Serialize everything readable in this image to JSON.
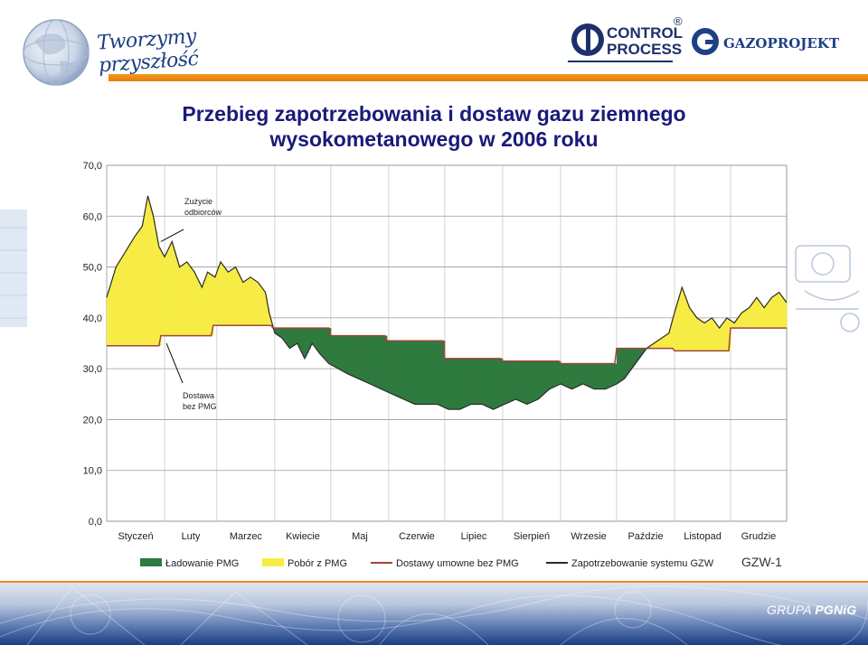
{
  "header": {
    "slogan": "Tworzymy przyszłość",
    "control_process": {
      "line1": "CONTROL",
      "line2": "PROCESS",
      "mark": "®"
    },
    "gazoprojekt": "GAZOPROJEKT"
  },
  "title": {
    "line1": "Przebieg zapotrzebowania i dostaw gazu ziemnego",
    "line2": "wysokometanowego w 2006 roku"
  },
  "footer": {
    "grupa": "GRUPA",
    "pgnig": "PGNiG",
    "gzw_code": "GZW-1"
  },
  "colors": {
    "loading": "#2f7a3e",
    "draw": "#f7ec45",
    "contract": "#a0453a",
    "demand": "#2a2a2a",
    "accent_orange": "#f08c17",
    "title": "#1a1a7a"
  },
  "chart_data": {
    "type": "area",
    "ylim": [
      0,
      70
    ],
    "yticks": [
      "0,0",
      "10,0",
      "20,0",
      "30,0",
      "40,0",
      "50,0",
      "60,0",
      "70,0"
    ],
    "ytick_values": [
      0,
      10,
      20,
      30,
      40,
      50,
      60,
      70
    ],
    "xlim": [
      1,
      365
    ],
    "months": [
      "Styczeń",
      "Luty",
      "Marzec",
      "Kwiecie",
      "Maj",
      "Czerwie",
      "Lipiec",
      "Sierpień",
      "Wrzesie",
      "Paździe",
      "Listopad",
      "Grudzie"
    ],
    "month_tick_days": [
      1,
      32,
      60,
      91,
      121,
      152,
      182,
      213,
      244,
      274,
      305,
      335
    ],
    "grid": true,
    "annotations": [
      {
        "text_lines": [
          "Zużycie",
          "odbiorców"
        ],
        "arrow_to": {
          "day": 30,
          "value": 55
        }
      },
      {
        "text_lines": [
          "Dostawa",
          "bez PMG"
        ],
        "arrow_to": {
          "day": 33,
          "value": 35
        }
      }
    ],
    "legend": {
      "placement": "bottom",
      "items": [
        {
          "label": "Ładowanie PMG",
          "kind": "fill",
          "color": "#2f7a3e"
        },
        {
          "label": "Pobór z PMG",
          "kind": "fill",
          "color": "#f7ec45"
        },
        {
          "label": "Dostawy umowne bez PMG",
          "kind": "line",
          "color": "#a0453a"
        },
        {
          "label": "Zapotrzebowanie systemu GZW",
          "kind": "line",
          "color": "#2a2a2a"
        }
      ]
    },
    "series": [
      {
        "name": "Zapotrzebowanie systemu GZW",
        "days": [
          1,
          6,
          11,
          16,
          20,
          23,
          26,
          29,
          32,
          36,
          40,
          44,
          48,
          52,
          55,
          59,
          62,
          66,
          70,
          74,
          78,
          82,
          86,
          88,
          91,
          95,
          99,
          103,
          107,
          111,
          115,
          120,
          125,
          130,
          136,
          142,
          148,
          154,
          160,
          166,
          172,
          178,
          184,
          190,
          196,
          202,
          208,
          214,
          220,
          226,
          232,
          238,
          244,
          250,
          256,
          262,
          268,
          274,
          278,
          282,
          286,
          290,
          294,
          298,
          302,
          305,
          309,
          313,
          317,
          321,
          325,
          329,
          333,
          337,
          341,
          345,
          349,
          353,
          357,
          361,
          365
        ],
        "values": [
          44,
          50,
          53,
          56,
          58,
          64,
          60,
          54,
          52,
          55,
          50,
          51,
          49,
          46,
          49,
          48,
          51,
          49,
          50,
          47,
          48,
          47,
          45,
          41,
          37,
          36,
          34,
          35,
          32,
          35,
          33,
          31,
          30,
          29,
          28,
          27,
          26,
          25,
          24,
          23,
          23,
          23,
          22,
          22,
          23,
          23,
          22,
          23,
          24,
          23,
          24,
          26,
          27,
          26,
          27,
          26,
          26,
          27,
          28,
          30,
          32,
          34,
          35,
          36,
          37,
          41,
          46,
          42,
          40,
          39,
          40,
          38,
          40,
          39,
          41,
          42,
          44,
          42,
          44,
          45,
          43
        ]
      },
      {
        "name": "Dostawy umowne bez PMG",
        "days": [
          1,
          29,
          30,
          57,
          58,
          89,
          90,
          120,
          121,
          150,
          151,
          181,
          182,
          212,
          213,
          243,
          244,
          273,
          274,
          304,
          305,
          334,
          335,
          365
        ],
        "values": [
          34.5,
          34.5,
          36.5,
          36.5,
          38.5,
          38.5,
          38,
          38,
          36.5,
          36.5,
          35.5,
          35.5,
          32,
          32,
          31.5,
          31.5,
          31,
          31,
          34,
          34,
          33.5,
          33.5,
          38,
          38
        ]
      }
    ]
  }
}
